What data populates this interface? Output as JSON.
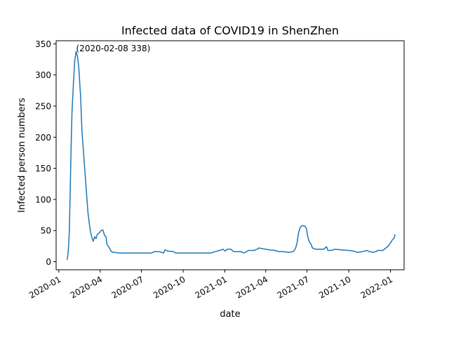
{
  "chart_data": {
    "type": "line",
    "title": "Infected data of COVID19 in ShenZhen",
    "xlabel": "date",
    "ylabel": "Infected person numbers",
    "x_ticks": [
      "2020-01",
      "2020-04",
      "2020-07",
      "2020-10",
      "2021-01",
      "2021-04",
      "2021-07",
      "2021-10",
      "2022-01"
    ],
    "y_ticks": [
      0,
      50,
      100,
      150,
      200,
      250,
      300,
      350
    ],
    "xlim": [
      "2019-12-26",
      "2022-01-31"
    ],
    "ylim": [
      -13,
      355
    ],
    "grid": false,
    "annotation": {
      "text": "(2020-02-08 338)",
      "x": "2020-02-08",
      "y": 338
    },
    "series": [
      {
        "color": "#1f77b4",
        "points": [
          [
            "2020-01-19",
            3
          ],
          [
            "2020-01-20",
            6
          ],
          [
            "2020-01-22",
            20
          ],
          [
            "2020-01-24",
            48
          ],
          [
            "2020-01-26",
            110
          ],
          [
            "2020-01-28",
            180
          ],
          [
            "2020-01-30",
            240
          ],
          [
            "2020-02-02",
            285
          ],
          [
            "2020-02-05",
            322
          ],
          [
            "2020-02-08",
            338
          ],
          [
            "2020-02-11",
            330
          ],
          [
            "2020-02-14",
            312
          ],
          [
            "2020-02-18",
            265
          ],
          [
            "2020-02-21",
            208
          ],
          [
            "2020-02-25",
            170
          ],
          [
            "2020-03-01",
            120
          ],
          [
            "2020-03-05",
            80
          ],
          [
            "2020-03-08",
            62
          ],
          [
            "2020-03-11",
            48
          ],
          [
            "2020-03-14",
            38
          ],
          [
            "2020-03-17",
            33
          ],
          [
            "2020-03-20",
            40
          ],
          [
            "2020-03-23",
            37
          ],
          [
            "2020-03-26",
            44
          ],
          [
            "2020-03-30",
            46
          ],
          [
            "2020-04-03",
            50
          ],
          [
            "2020-04-07",
            51
          ],
          [
            "2020-04-09",
            46
          ],
          [
            "2020-04-11",
            42
          ],
          [
            "2020-04-14",
            40
          ],
          [
            "2020-04-16",
            28
          ],
          [
            "2020-04-20",
            24
          ],
          [
            "2020-04-24",
            18
          ],
          [
            "2020-04-28",
            15
          ],
          [
            "2020-05-03",
            15
          ],
          [
            "2020-05-10",
            14
          ],
          [
            "2020-06-01",
            14
          ],
          [
            "2020-07-01",
            14
          ],
          [
            "2020-07-24",
            14
          ],
          [
            "2020-07-29",
            16
          ],
          [
            "2020-08-10",
            16
          ],
          [
            "2020-08-19",
            14
          ],
          [
            "2020-08-22",
            19
          ],
          [
            "2020-08-28",
            17
          ],
          [
            "2020-09-10",
            16
          ],
          [
            "2020-09-14",
            14
          ],
          [
            "2020-10-01",
            14
          ],
          [
            "2020-11-01",
            14
          ],
          [
            "2020-12-01",
            14
          ],
          [
            "2020-12-10",
            16
          ],
          [
            "2020-12-20",
            18
          ],
          [
            "2020-12-28",
            20
          ],
          [
            "2021-01-01",
            17
          ],
          [
            "2021-01-06",
            20
          ],
          [
            "2021-01-14",
            20
          ],
          [
            "2021-01-21",
            16
          ],
          [
            "2021-02-05",
            16
          ],
          [
            "2021-02-12",
            14
          ],
          [
            "2021-02-22",
            18
          ],
          [
            "2021-03-06",
            18
          ],
          [
            "2021-03-13",
            20
          ],
          [
            "2021-03-17",
            22
          ],
          [
            "2021-04-01",
            20
          ],
          [
            "2021-04-10",
            19
          ],
          [
            "2021-04-21",
            18
          ],
          [
            "2021-05-01",
            16
          ],
          [
            "2021-05-10",
            16
          ],
          [
            "2021-05-22",
            15
          ],
          [
            "2021-05-31",
            16
          ],
          [
            "2021-06-03",
            18
          ],
          [
            "2021-06-06",
            22
          ],
          [
            "2021-06-09",
            30
          ],
          [
            "2021-06-12",
            45
          ],
          [
            "2021-06-16",
            55
          ],
          [
            "2021-06-20",
            58
          ],
          [
            "2021-06-27",
            57
          ],
          [
            "2021-06-30",
            52
          ],
          [
            "2021-07-02",
            42
          ],
          [
            "2021-07-06",
            32
          ],
          [
            "2021-07-10",
            28
          ],
          [
            "2021-07-13",
            22
          ],
          [
            "2021-07-20",
            20
          ],
          [
            "2021-08-01",
            20
          ],
          [
            "2021-08-07",
            20
          ],
          [
            "2021-08-13",
            24
          ],
          [
            "2021-08-16",
            18
          ],
          [
            "2021-08-24",
            18
          ],
          [
            "2021-09-01",
            20
          ],
          [
            "2021-09-15",
            19
          ],
          [
            "2021-10-01",
            18
          ],
          [
            "2021-10-11",
            17
          ],
          [
            "2021-10-21",
            15
          ],
          [
            "2021-10-31",
            16
          ],
          [
            "2021-11-10",
            18
          ],
          [
            "2021-11-16",
            16
          ],
          [
            "2021-11-25",
            15
          ],
          [
            "2021-12-05",
            18
          ],
          [
            "2021-12-15",
            18
          ],
          [
            "2021-12-22",
            22
          ],
          [
            "2021-12-27",
            25
          ],
          [
            "2022-01-01",
            30
          ],
          [
            "2022-01-05",
            35
          ],
          [
            "2022-01-09",
            38
          ],
          [
            "2022-01-11",
            44
          ]
        ]
      }
    ]
  }
}
